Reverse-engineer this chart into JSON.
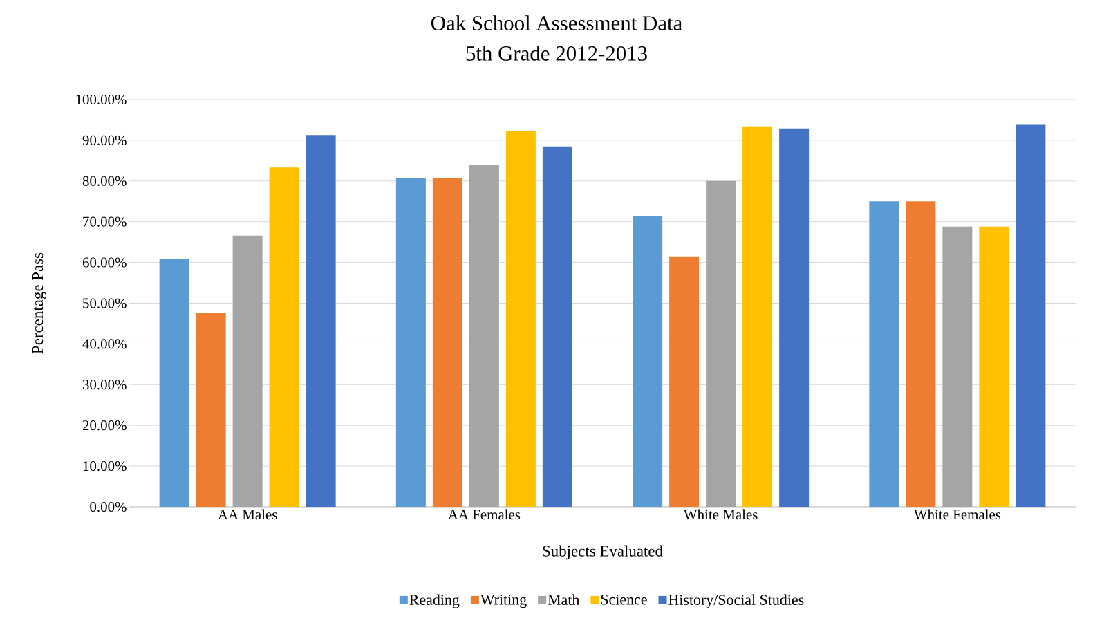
{
  "chart_data": {
    "type": "bar",
    "title": "Oak School Assessment Data",
    "subtitle": "5th Grade 2012-2013",
    "xlabel": "Subjects Evaluated",
    "ylabel": "Percentage Pass",
    "categories": [
      "AA Males",
      "AA Females",
      "White Males",
      "White Females"
    ],
    "series": [
      {
        "name": "Reading",
        "color": "#5b9bd5",
        "values": [
          60.8,
          80.7,
          71.4,
          75.0
        ]
      },
      {
        "name": "Writing",
        "color": "#ed7d31",
        "values": [
          47.7,
          80.7,
          61.5,
          75.0
        ]
      },
      {
        "name": "Math",
        "color": "#a5a5a5",
        "values": [
          66.6,
          84.0,
          80.0,
          68.8
        ]
      },
      {
        "name": "Science",
        "color": "#ffc000",
        "values": [
          83.3,
          92.3,
          93.4,
          68.8
        ]
      },
      {
        "name": "History/Social Studies",
        "color": "#4472c4",
        "values": [
          91.3,
          88.5,
          92.9,
          93.8
        ]
      }
    ],
    "ylim": [
      0,
      100
    ],
    "yticks": [
      {
        "value": 0,
        "label": "0.00%"
      },
      {
        "value": 10,
        "label": "10.00%"
      },
      {
        "value": 20,
        "label": "20.00%"
      },
      {
        "value": 30,
        "label": "30.00%"
      },
      {
        "value": 40,
        "label": "40.00%"
      },
      {
        "value": 50,
        "label": "50.00%"
      },
      {
        "value": 60,
        "label": "60.00%"
      },
      {
        "value": 70,
        "label": "70.00%"
      },
      {
        "value": 80,
        "label": "80.00%"
      },
      {
        "value": 90,
        "label": "90.00%"
      },
      {
        "value": 100,
        "label": "100.00%"
      }
    ],
    "grid": "y",
    "legend": "bottom"
  }
}
